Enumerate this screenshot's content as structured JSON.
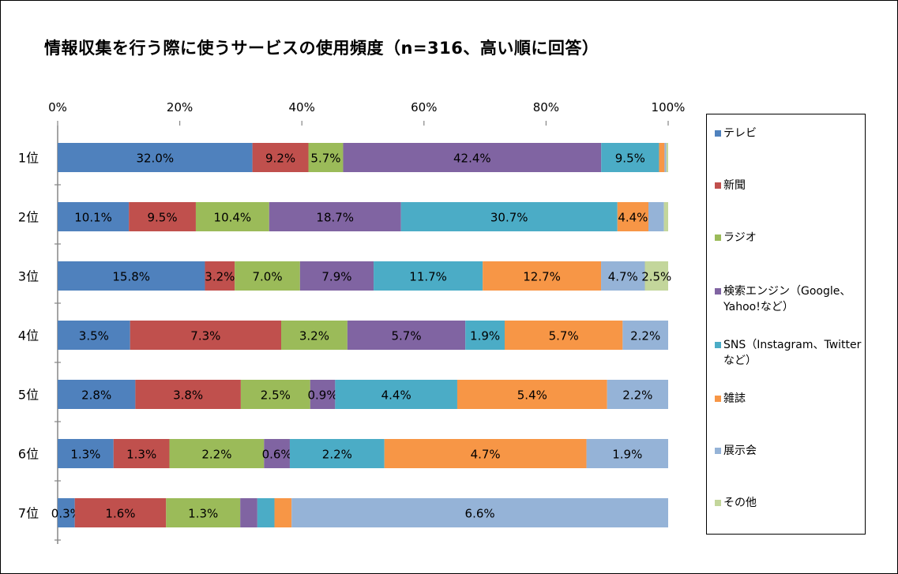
{
  "title": "情報収集を行う際に使うサービスの使用頻度（n=316、高い順に回答）",
  "chart_data": {
    "type": "bar",
    "orientation": "horizontal",
    "stacked": "percent",
    "title": "情報収集を行う際に使うサービスの使用頻度（n=316、高い順に回答）",
    "categories": [
      "1位",
      "2位",
      "3位",
      "4位",
      "5位",
      "6位",
      "7位"
    ],
    "x_ticks": [
      "0%",
      "20%",
      "40%",
      "60%",
      "80%",
      "100%"
    ],
    "xlim": [
      0,
      100
    ],
    "legend_position": "right",
    "series": [
      {
        "name": "テレビ",
        "color": "#4F81BD",
        "values": [
          32.0,
          10.1,
          15.8,
          3.5,
          2.8,
          1.3,
          0.3
        ]
      },
      {
        "name": "新聞",
        "color": "#C0504D",
        "values": [
          9.2,
          9.5,
          3.2,
          7.3,
          3.8,
          1.3,
          1.6
        ]
      },
      {
        "name": "ラジオ",
        "color": "#9BBB59",
        "values": [
          5.7,
          10.4,
          7.0,
          3.2,
          2.5,
          2.2,
          1.3
        ]
      },
      {
        "name": "検索エンジン（Google、Yahoo!など）",
        "color": "#8064A2",
        "values": [
          42.4,
          18.7,
          7.9,
          5.7,
          0.9,
          0.6,
          0.3
        ]
      },
      {
        "name": "SNS（Instagram、Twitterなど）",
        "color": "#4BACC6",
        "values": [
          9.5,
          30.7,
          11.7,
          1.9,
          4.4,
          2.2,
          0.3
        ]
      },
      {
        "name": "雑誌",
        "color": "#F79646",
        "values": [
          0.9,
          4.4,
          12.7,
          5.7,
          5.4,
          4.7,
          0.3
        ]
      },
      {
        "name": "展示会",
        "color": "#95B3D7",
        "values": [
          0.3,
          2.2,
          4.7,
          2.2,
          2.2,
          1.9,
          6.6
        ]
      },
      {
        "name": "その他",
        "color": "#C3D69B",
        "values": [
          0.3,
          0.6,
          2.5,
          0,
          0,
          0,
          0
        ]
      }
    ],
    "labels": [
      [
        "32.0%",
        "9.2%",
        "5.7%",
        "42.4%",
        "9.5%",
        "",
        "",
        ""
      ],
      [
        "10.1%",
        "9.5%",
        "10.4%",
        "18.7%",
        "30.7%",
        "4.4%",
        "",
        ""
      ],
      [
        "15.8%",
        "3.2%",
        "7.0%",
        "7.9%",
        "11.7%",
        "12.7%",
        "4.7%",
        "2.5%"
      ],
      [
        "3.5%",
        "7.3%",
        "3.2%",
        "5.7%",
        "1.9%",
        "5.7%",
        "2.2%",
        ""
      ],
      [
        "2.8%",
        "3.8%",
        "2.5%",
        "0.9%",
        "4.4%",
        "5.4%",
        "2.2%",
        ""
      ],
      [
        "1.3%",
        "1.3%",
        "2.2%",
        "0.6%",
        "2.2%",
        "4.7%",
        "1.9%",
        ""
      ],
      [
        "0.3%",
        "1.6%",
        "1.3%",
        "",
        "",
        "",
        "6.6%",
        ""
      ]
    ]
  },
  "legend": {
    "items": [
      {
        "label": "テレビ"
      },
      {
        "label": "新聞"
      },
      {
        "label": "ラジオ"
      },
      {
        "label": "検索エンジン（Google、Yahoo!など）"
      },
      {
        "label": "SNS（Instagram、Twitterなど）"
      },
      {
        "label": "雑誌"
      },
      {
        "label": "展示会"
      },
      {
        "label": "その他"
      }
    ]
  }
}
